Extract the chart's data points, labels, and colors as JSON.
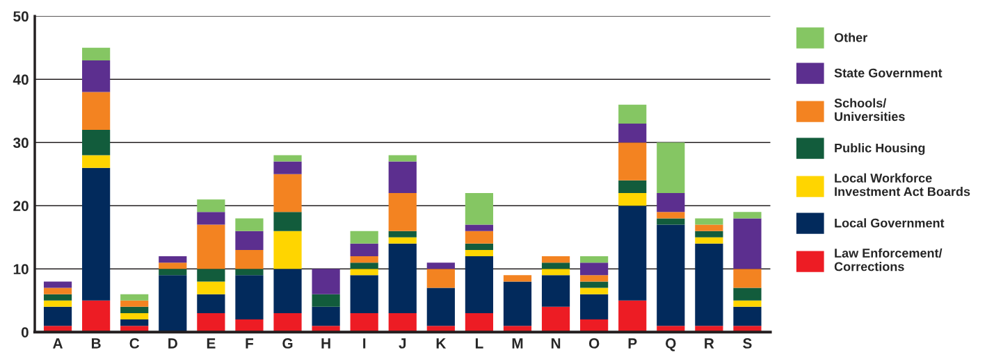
{
  "chart_data": {
    "type": "bar",
    "stacked": true,
    "categories": [
      "A",
      "B",
      "C",
      "D",
      "E",
      "F",
      "G",
      "H",
      "I",
      "J",
      "K",
      "L",
      "M",
      "N",
      "O",
      "P",
      "Q",
      "R",
      "S"
    ],
    "series": [
      {
        "name": "Law Enforcement/\nCorrections",
        "color": "#ed1c24",
        "values": [
          1,
          5,
          1,
          0,
          3,
          2,
          3,
          1,
          3,
          3,
          1,
          3,
          1,
          4,
          2,
          5,
          1,
          1,
          1
        ]
      },
      {
        "name": "Local Government",
        "color": "#022a5c",
        "values": [
          3,
          21,
          1,
          9,
          3,
          7,
          7,
          3,
          6,
          11,
          6,
          9,
          7,
          5,
          4,
          15,
          16,
          13,
          3
        ]
      },
      {
        "name": "Local Workforce\nInvestment Act Boards",
        "color": "#ffd500",
        "values": [
          1,
          2,
          1,
          0,
          2,
          0,
          6,
          0,
          1,
          1,
          0,
          1,
          0,
          1,
          1,
          2,
          0,
          1,
          1
        ]
      },
      {
        "name": "Public Housing",
        "color": "#125c3c",
        "values": [
          1,
          4,
          1,
          1,
          2,
          1,
          3,
          2,
          1,
          1,
          0,
          1,
          0,
          1,
          1,
          2,
          1,
          1,
          2
        ]
      },
      {
        "name": "Schools/\nUniversities",
        "color": "#f38321",
        "values": [
          1,
          6,
          1,
          1,
          7,
          3,
          6,
          0,
          1,
          6,
          3,
          2,
          1,
          1,
          1,
          6,
          1,
          1,
          3
        ]
      },
      {
        "name": "State Government",
        "color": "#5c2f8f",
        "values": [
          1,
          5,
          0,
          1,
          2,
          3,
          2,
          4,
          2,
          5,
          1,
          1,
          0,
          0,
          2,
          3,
          3,
          0,
          8
        ]
      },
      {
        "name": "Other",
        "color": "#85c663",
        "values": [
          0,
          2,
          1,
          0,
          2,
          2,
          1,
          0,
          2,
          1,
          0,
          5,
          0,
          0,
          1,
          3,
          8,
          1,
          1
        ]
      }
    ],
    "ylim": [
      0,
      50
    ],
    "yticks": [
      0,
      10,
      20,
      30,
      40,
      50
    ],
    "grid": "y",
    "legend": "right"
  }
}
